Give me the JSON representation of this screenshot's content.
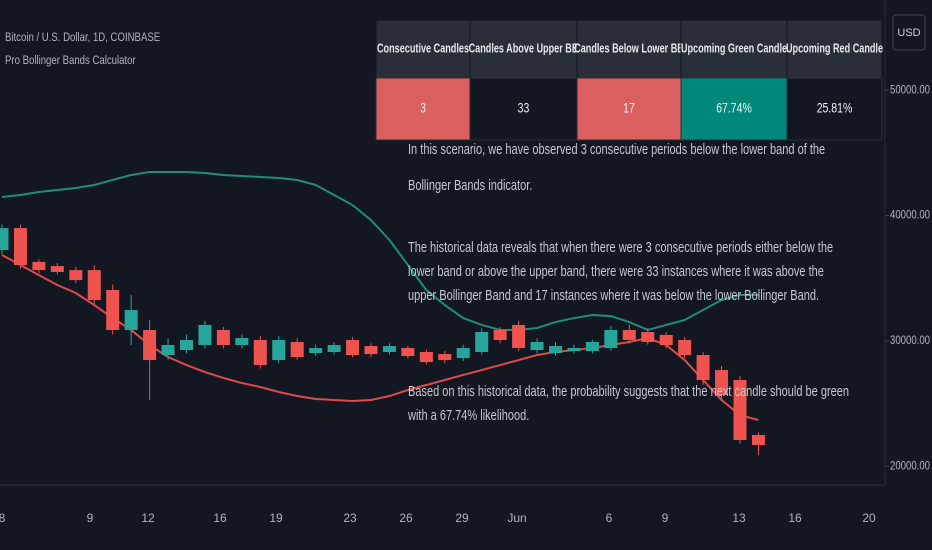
{
  "header": {
    "symbol": "Bitcoin / U.S. Dollar, 1D, COINBASE",
    "indicator": "Pro Bollinger Bands Calculator"
  },
  "table": {
    "headers": [
      "Consecutive Candles",
      "Candles Above Upper BB",
      "Candles Below Lower BB",
      "Upcoming Green Candle",
      "Upcoming Red Candle"
    ],
    "rows": [
      [
        "3",
        "33",
        "17",
        "67.74%",
        "25.81%"
      ]
    ],
    "cell_colors": [
      "#d9605f",
      "#131722",
      "#d9605f",
      "#00897b",
      "#131722"
    ]
  },
  "notes": [
    [
      "In this scenario, we have observed 3 consecutive periods below the lower band of the",
      "Bollinger Bands indicator."
    ],
    [
      "The historical data reveals that when there were 3 consecutive periods either below the",
      "lower band or above the upper band, there were 33 instances where it was above the",
      "upper Bollinger Band and 17 instances where it was below the lower Bollinger Band."
    ],
    [
      "Based on this historical data, the probability suggests that the next candle should be green",
      "with a 67.74% likelihood."
    ]
  ],
  "chart_data": {
    "type": "candlestick",
    "y_axis_label": "USD",
    "xtick_labels": [
      "8",
      "9",
      "12",
      "16",
      "19",
      "23",
      "26",
      "29",
      "Jun",
      "6",
      "9",
      "13",
      "16",
      "20"
    ],
    "ylim": [
      18500,
      57200
    ],
    "yticks": [
      {
        "value": 50000,
        "label": "50000.00"
      },
      {
        "value": 40000,
        "label": "40000.00"
      },
      {
        "value": 30000,
        "label": "30000.00"
      },
      {
        "value": 20000,
        "label": "20000.00"
      }
    ],
    "up_color": "#26a69a",
    "down_color": "#ef5350",
    "open": [
      37250,
      39000,
      36300,
      35970,
      35650,
      35650,
      34060,
      30870,
      30870,
      28870,
      29270,
      29670,
      30870,
      29670,
      30070,
      28470,
      29910,
      29030,
      29110,
      30070,
      29590,
      29110,
      29430,
      29110,
      28950,
      28630,
      29110,
      30870,
      31270,
      29270,
      29030,
      29190,
      29190,
      29430,
      30870,
      30710,
      30470,
      30070,
      28870,
      27670,
      26880,
      22490
    ],
    "high": [
      39300,
      39250,
      36500,
      36200,
      35900,
      36050,
      34500,
      33660,
      31670,
      30200,
      30500,
      31600,
      31100,
      30500,
      30400,
      30400,
      30200,
      29700,
      29900,
      30300,
      29800,
      29800,
      29600,
      29300,
      29200,
      29700,
      31000,
      31100,
      31600,
      30200,
      29900,
      29700,
      30100,
      31200,
      31300,
      31000,
      30700,
      30300,
      29100,
      28000,
      27200,
      22700
    ],
    "low": [
      36900,
      35800,
      35400,
      35300,
      34600,
      32860,
      30500,
      29670,
      25280,
      28500,
      29000,
      29400,
      29400,
      29400,
      27800,
      28200,
      28500,
      28800,
      28900,
      28700,
      28700,
      28900,
      28600,
      28100,
      28200,
      28400,
      28900,
      29800,
      29200,
      29000,
      28800,
      29000,
      29000,
      29200,
      29800,
      29700,
      29400,
      28600,
      26500,
      25200,
      21800,
      20900
    ],
    "close": [
      39000,
      36050,
      35650,
      35500,
      34850,
      33260,
      30870,
      32460,
      28470,
      29670,
      30070,
      31270,
      29670,
      30230,
      28070,
      30070,
      28710,
      29430,
      29670,
      28870,
      28950,
      29590,
      28790,
      28310,
      28470,
      29430,
      30710,
      30070,
      29430,
      29910,
      29590,
      29430,
      29910,
      30870,
      30070,
      29910,
      29670,
      28870,
      26880,
      25680,
      22090,
      21690
    ],
    "series": [
      {
        "name": "Upper Band",
        "color": "#1e8c7e",
        "values": [
          41480,
          41640,
          41880,
          42040,
          42200,
          42440,
          42840,
          43240,
          43480,
          43480,
          43480,
          43400,
          43240,
          43160,
          43080,
          43000,
          42840,
          42440,
          41640,
          40840,
          39640,
          38050,
          36050,
          34060,
          32860,
          31820,
          31270,
          30870,
          30870,
          31030,
          31500,
          31820,
          32060,
          31980,
          31500,
          30870,
          31270,
          31670,
          32460,
          33260,
          33660,
          33660
        ]
      },
      {
        "name": "Lower Band",
        "color": "#e04a4a",
        "values": [
          36850,
          36050,
          35250,
          34460,
          33820,
          32860,
          31820,
          30870,
          29670,
          28710,
          28070,
          27510,
          27040,
          26640,
          26320,
          25920,
          25600,
          25360,
          25280,
          25200,
          25280,
          25600,
          26080,
          26480,
          26880,
          27280,
          27670,
          28070,
          28470,
          28870,
          29110,
          29270,
          29430,
          29670,
          29910,
          30230,
          29670,
          28470,
          26880,
          25280,
          24080,
          23680
        ]
      }
    ]
  }
}
